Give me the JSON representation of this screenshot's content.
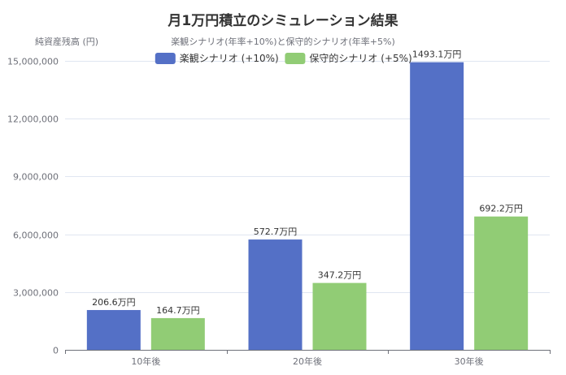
{
  "chart_data": {
    "type": "bar",
    "title": "月1万円積立のシミュレーション結果",
    "subtitle": "楽観シナリオ(年率+10%)と保守的シナリオ(年率+5%)",
    "xlabel": "",
    "ylabel": "純資産残高 (円)",
    "categories": [
      "10年後",
      "20年後",
      "30年後"
    ],
    "series": [
      {
        "name": "楽観シナリオ (+10%)",
        "color": "#5470c6",
        "values": [
          2066000,
          5727000,
          14931000
        ],
        "labels": [
          "206.6万円",
          "572.7万円",
          "1493.1万円"
        ]
      },
      {
        "name": "保守的シナリオ (+5%)",
        "color": "#91cc75",
        "values": [
          1647000,
          3472000,
          6922000
        ],
        "labels": [
          "164.7万円",
          "347.2万円",
          "692.2万円"
        ]
      }
    ],
    "ylim": [
      0,
      15000000
    ],
    "yticks": [
      0,
      3000000,
      6000000,
      9000000,
      12000000,
      15000000
    ],
    "ytick_labels": [
      "0",
      "3,000,000",
      "6,000,000",
      "9,000,000",
      "12,000,000",
      "15,000,000"
    ],
    "grid": true,
    "legend_position": "top-center"
  }
}
